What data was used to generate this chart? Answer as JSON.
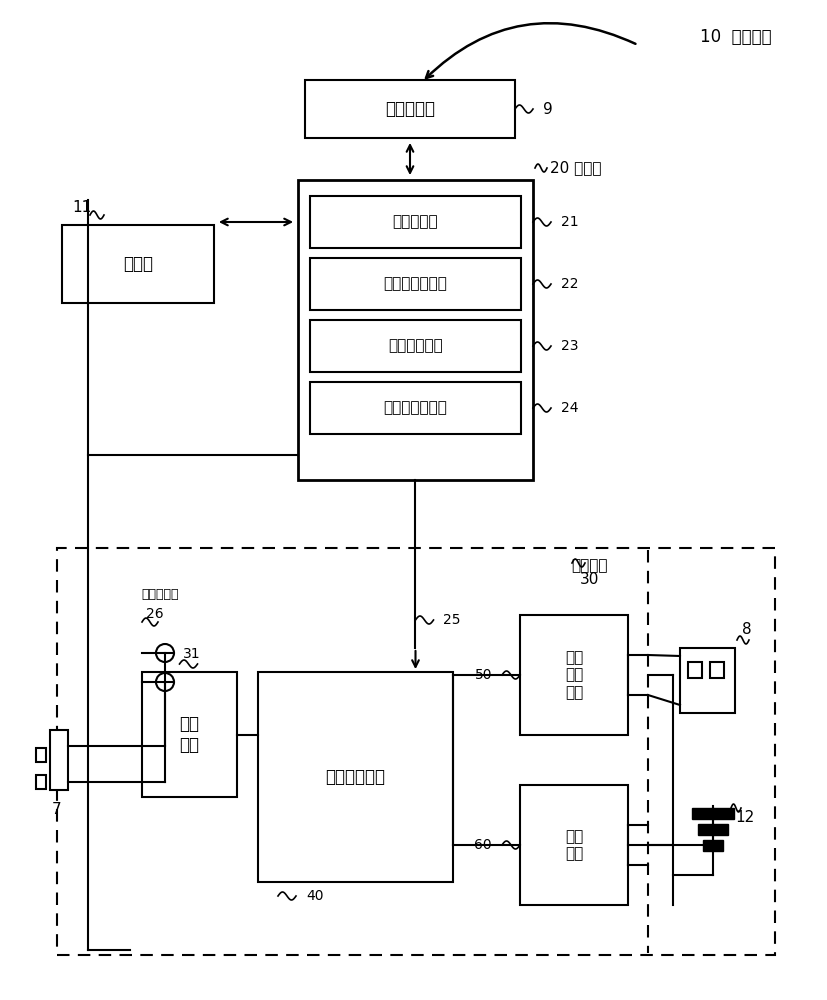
{
  "bg": "#ffffff",
  "t10": "10  电源装置",
  "t9": "输入输出部",
  "t11": "通信部",
  "t20": "20 控制部",
  "t21": "连接监视部",
  "t22": "优先顺位设定部",
  "t23": "限制値取得部",
  "t24": "电力限制信号部",
  "t30_line1": "电源电路",
  "t30_line2": "30",
  "t31": "整流\n电路",
  "t40": "电力限制电路",
  "t50": "外部\n输出\n电路",
  "t60": "充电\n电路",
  "t_cur": "电流检测器"
}
